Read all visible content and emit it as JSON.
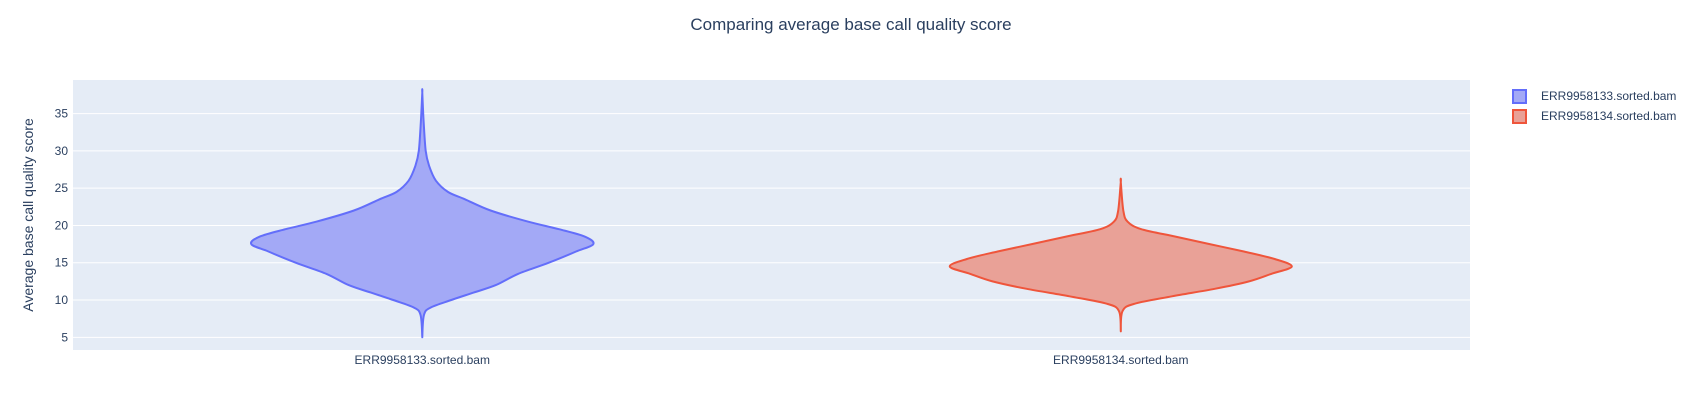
{
  "chart_data": {
    "type": "violin",
    "title": "Comparing average base call quality score",
    "xlabel": "",
    "ylabel": "Average base call quality score",
    "ylim": [
      3.3,
      39.5
    ],
    "yticks": [
      5,
      10,
      15,
      20,
      25,
      30,
      35
    ],
    "grid": true,
    "legend_position": "top-right",
    "categories": [
      "ERR9958133.sorted.bam",
      "ERR9958134.sorted.bam"
    ],
    "series": [
      {
        "name": "ERR9958133.sorted.bam",
        "color": "#636efa",
        "fill": "#a3a9f6",
        "min": 5.0,
        "max": 37.8,
        "density_profile": [
          [
            5.0,
            0.0
          ],
          [
            8.0,
            0.01
          ],
          [
            9.0,
            0.05
          ],
          [
            10.0,
            0.17
          ],
          [
            11.0,
            0.3
          ],
          [
            12.0,
            0.43
          ],
          [
            13.5,
            0.56
          ],
          [
            15.0,
            0.74
          ],
          [
            16.5,
            0.9
          ],
          [
            17.5,
            1.0
          ],
          [
            18.5,
            0.95
          ],
          [
            19.5,
            0.8
          ],
          [
            20.5,
            0.62
          ],
          [
            22.0,
            0.4
          ],
          [
            23.5,
            0.25
          ],
          [
            24.5,
            0.15
          ],
          [
            26.0,
            0.08
          ],
          [
            28.0,
            0.04
          ],
          [
            30.0,
            0.02
          ],
          [
            34.0,
            0.008
          ],
          [
            37.8,
            0.0
          ]
        ]
      },
      {
        "name": "ERR9958134.sorted.bam",
        "color": "#ef553b",
        "fill": "#e9a197",
        "min": 5.8,
        "max": 25.8,
        "density_profile": [
          [
            5.8,
            0.0
          ],
          [
            8.5,
            0.01
          ],
          [
            9.5,
            0.08
          ],
          [
            10.5,
            0.3
          ],
          [
            11.5,
            0.55
          ],
          [
            12.5,
            0.75
          ],
          [
            13.5,
            0.88
          ],
          [
            14.5,
            1.0
          ],
          [
            15.5,
            0.9
          ],
          [
            16.5,
            0.72
          ],
          [
            17.5,
            0.52
          ],
          [
            18.5,
            0.32
          ],
          [
            19.5,
            0.12
          ],
          [
            20.5,
            0.04
          ],
          [
            22.0,
            0.015
          ],
          [
            25.8,
            0.0
          ]
        ]
      }
    ]
  }
}
